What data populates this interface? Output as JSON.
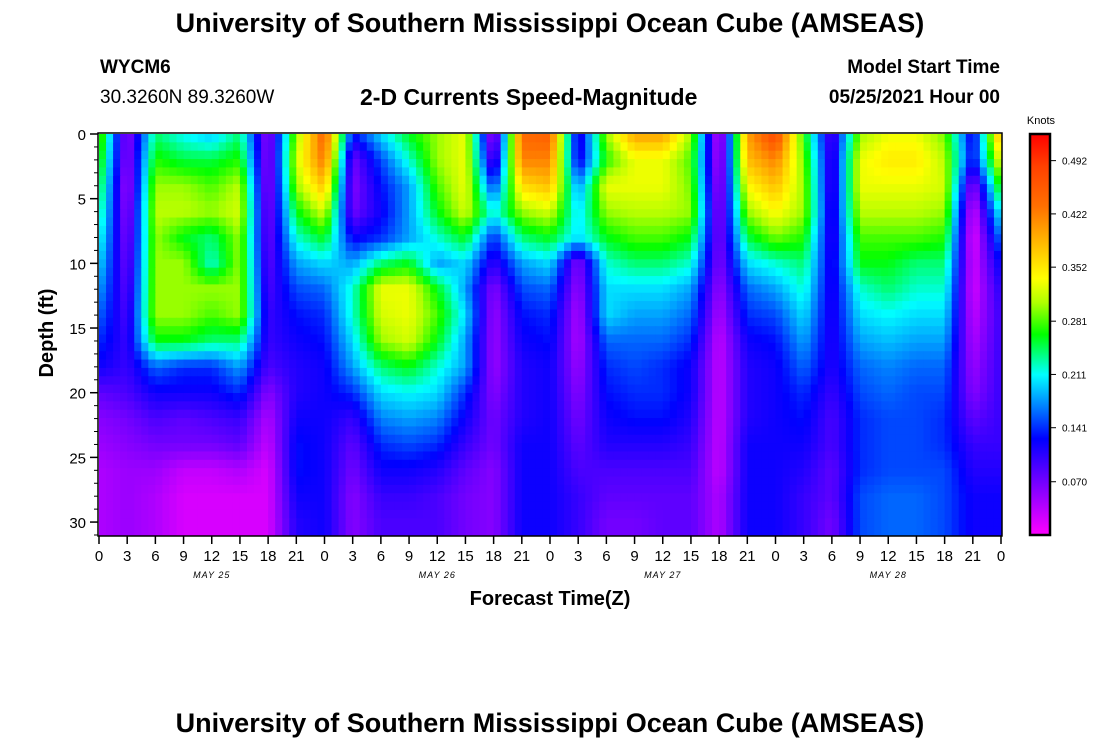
{
  "header": {
    "title": "University of Southern Mississippi Ocean Cube (AMSEAS)",
    "station": "WYCM6",
    "coords": "30.3260N  89.3260W",
    "subtitle": "2-D Currents Speed-Magnitude",
    "model_start_label": "Model Start Time",
    "model_start_value": "05/25/2021 Hour 00"
  },
  "footer": {
    "title": "University of Southern Mississippi Ocean Cube (AMSEAS)"
  },
  "chart_data": {
    "type": "heatmap",
    "title": "2-D Currents Speed-Magnitude",
    "xlabel": "Forecast Time(Z)",
    "ylabel": "Depth (ft)",
    "ylim": [
      0,
      31
    ],
    "y_ticks": [
      "0",
      "5",
      "10",
      "15",
      "20",
      "25",
      "30"
    ],
    "x_ticks": [
      "0",
      "3",
      "6",
      "9",
      "12",
      "15",
      "18",
      "21",
      "0",
      "3",
      "6",
      "9",
      "12",
      "15",
      "18",
      "21",
      "0",
      "3",
      "6",
      "9",
      "12",
      "15",
      "18",
      "21",
      "0",
      "3",
      "6",
      "9",
      "12",
      "15",
      "18",
      "21",
      "0"
    ],
    "day_labels": [
      "MAY 25",
      "MAY 26",
      "MAY 27",
      "MAY 28"
    ],
    "colorbar": {
      "unit": "Knots",
      "tick_labels": [
        "0.492",
        "0.422",
        "0.352",
        "0.281",
        "0.211",
        "0.141",
        "0.070"
      ],
      "range": [
        0,
        0.527
      ]
    },
    "depths_ft": [
      0,
      2,
      4,
      6,
      8,
      10,
      12,
      14,
      16,
      18,
      20,
      22,
      24,
      26,
      28,
      30
    ],
    "hours": [
      0,
      3,
      6,
      9,
      12,
      15,
      18,
      21,
      24,
      27,
      30,
      33,
      36,
      39,
      42,
      45,
      48,
      51,
      54,
      57,
      60,
      63,
      66,
      69,
      72,
      75,
      78,
      81,
      84,
      87,
      90,
      93,
      96
    ],
    "values": [
      [
        0.3,
        0.05,
        0.24,
        0.21,
        0.19,
        0.24,
        0.05,
        0.3,
        0.45,
        0.13,
        0.2,
        0.26,
        0.3,
        0.33,
        0.03,
        0.44,
        0.45,
        0.1,
        0.3,
        0.4,
        0.4,
        0.3,
        0.02,
        0.4,
        0.48,
        0.27,
        0.08,
        0.3,
        0.33,
        0.33,
        0.29,
        0.11,
        0.4
      ],
      [
        0.28,
        0.05,
        0.27,
        0.25,
        0.25,
        0.27,
        0.05,
        0.32,
        0.43,
        0.07,
        0.15,
        0.22,
        0.3,
        0.33,
        0.07,
        0.42,
        0.42,
        0.11,
        0.27,
        0.33,
        0.33,
        0.28,
        0.03,
        0.38,
        0.42,
        0.29,
        0.09,
        0.33,
        0.35,
        0.35,
        0.31,
        0.12,
        0.34
      ],
      [
        0.26,
        0.04,
        0.3,
        0.3,
        0.28,
        0.31,
        0.05,
        0.3,
        0.38,
        0.06,
        0.13,
        0.18,
        0.28,
        0.33,
        0.14,
        0.36,
        0.38,
        0.17,
        0.33,
        0.33,
        0.33,
        0.29,
        0.04,
        0.34,
        0.38,
        0.3,
        0.09,
        0.33,
        0.33,
        0.33,
        0.32,
        0.05,
        0.28
      ],
      [
        0.24,
        0.05,
        0.31,
        0.31,
        0.3,
        0.32,
        0.06,
        0.26,
        0.32,
        0.07,
        0.12,
        0.18,
        0.26,
        0.32,
        0.21,
        0.3,
        0.32,
        0.2,
        0.3,
        0.31,
        0.31,
        0.3,
        0.05,
        0.3,
        0.34,
        0.3,
        0.1,
        0.31,
        0.31,
        0.31,
        0.3,
        0.02,
        0.22
      ],
      [
        0.22,
        0.06,
        0.3,
        0.26,
        0.24,
        0.3,
        0.07,
        0.22,
        0.26,
        0.12,
        0.14,
        0.18,
        0.22,
        0.26,
        0.14,
        0.24,
        0.26,
        0.2,
        0.26,
        0.28,
        0.28,
        0.26,
        0.06,
        0.25,
        0.29,
        0.27,
        0.1,
        0.28,
        0.28,
        0.28,
        0.27,
        0.01,
        0.17
      ],
      [
        0.2,
        0.07,
        0.3,
        0.3,
        0.22,
        0.3,
        0.08,
        0.18,
        0.2,
        0.18,
        0.24,
        0.26,
        0.18,
        0.2,
        0.1,
        0.18,
        0.2,
        0.06,
        0.22,
        0.24,
        0.24,
        0.22,
        0.06,
        0.2,
        0.22,
        0.24,
        0.11,
        0.26,
        0.26,
        0.24,
        0.24,
        0.02,
        0.13
      ],
      [
        0.18,
        0.08,
        0.3,
        0.3,
        0.3,
        0.3,
        0.09,
        0.15,
        0.16,
        0.22,
        0.33,
        0.33,
        0.26,
        0.18,
        0.06,
        0.15,
        0.16,
        0.05,
        0.2,
        0.2,
        0.2,
        0.18,
        0.05,
        0.16,
        0.18,
        0.22,
        0.11,
        0.22,
        0.24,
        0.22,
        0.22,
        0.02,
        0.11
      ],
      [
        0.16,
        0.09,
        0.3,
        0.3,
        0.28,
        0.3,
        0.1,
        0.13,
        0.14,
        0.22,
        0.32,
        0.33,
        0.28,
        0.2,
        0.05,
        0.13,
        0.14,
        0.04,
        0.2,
        0.18,
        0.18,
        0.16,
        0.04,
        0.14,
        0.15,
        0.2,
        0.11,
        0.2,
        0.21,
        0.2,
        0.2,
        0.03,
        0.1
      ],
      [
        0.14,
        0.1,
        0.26,
        0.26,
        0.24,
        0.24,
        0.1,
        0.12,
        0.13,
        0.2,
        0.3,
        0.32,
        0.26,
        0.18,
        0.05,
        0.12,
        0.13,
        0.04,
        0.16,
        0.16,
        0.16,
        0.14,
        0.03,
        0.12,
        0.13,
        0.18,
        0.11,
        0.18,
        0.19,
        0.18,
        0.18,
        0.04,
        0.1
      ],
      [
        0.12,
        0.1,
        0.16,
        0.14,
        0.14,
        0.18,
        0.09,
        0.11,
        0.12,
        0.18,
        0.24,
        0.26,
        0.22,
        0.18,
        0.05,
        0.11,
        0.12,
        0.05,
        0.14,
        0.15,
        0.14,
        0.12,
        0.03,
        0.11,
        0.12,
        0.16,
        0.11,
        0.16,
        0.17,
        0.16,
        0.16,
        0.05,
        0.1
      ],
      [
        0.08,
        0.09,
        0.12,
        0.12,
        0.12,
        0.14,
        0.06,
        0.11,
        0.12,
        0.14,
        0.2,
        0.21,
        0.2,
        0.14,
        0.06,
        0.11,
        0.12,
        0.06,
        0.13,
        0.14,
        0.14,
        0.12,
        0.03,
        0.11,
        0.12,
        0.14,
        0.1,
        0.15,
        0.16,
        0.15,
        0.15,
        0.06,
        0.1
      ],
      [
        0.06,
        0.07,
        0.09,
        0.08,
        0.09,
        0.1,
        0.04,
        0.12,
        0.12,
        0.1,
        0.17,
        0.18,
        0.17,
        0.12,
        0.07,
        0.11,
        0.12,
        0.07,
        0.12,
        0.13,
        0.13,
        0.11,
        0.03,
        0.11,
        0.12,
        0.13,
        0.09,
        0.14,
        0.15,
        0.15,
        0.14,
        0.08,
        0.1
      ],
      [
        0.05,
        0.06,
        0.07,
        0.07,
        0.07,
        0.08,
        0.03,
        0.13,
        0.12,
        0.08,
        0.14,
        0.15,
        0.14,
        0.1,
        0.07,
        0.12,
        0.12,
        0.08,
        0.11,
        0.11,
        0.11,
        0.1,
        0.03,
        0.12,
        0.12,
        0.12,
        0.09,
        0.14,
        0.15,
        0.15,
        0.14,
        0.1,
        0.1
      ],
      [
        0.04,
        0.05,
        0.05,
        0.03,
        0.03,
        0.04,
        0.02,
        0.13,
        0.12,
        0.07,
        0.12,
        0.12,
        0.11,
        0.08,
        0.06,
        0.12,
        0.12,
        0.09,
        0.09,
        0.09,
        0.09,
        0.09,
        0.03,
        0.12,
        0.12,
        0.11,
        0.08,
        0.14,
        0.15,
        0.15,
        0.15,
        0.11,
        0.11
      ],
      [
        0.04,
        0.05,
        0.04,
        0.02,
        0.02,
        0.02,
        0.02,
        0.12,
        0.12,
        0.06,
        0.1,
        0.1,
        0.09,
        0.07,
        0.06,
        0.12,
        0.12,
        0.1,
        0.08,
        0.08,
        0.08,
        0.08,
        0.04,
        0.12,
        0.12,
        0.1,
        0.08,
        0.15,
        0.16,
        0.16,
        0.15,
        0.12,
        0.12
      ],
      [
        0.04,
        0.05,
        0.04,
        0.02,
        0.02,
        0.02,
        0.02,
        0.11,
        0.12,
        0.06,
        0.09,
        0.09,
        0.09,
        0.07,
        0.06,
        0.12,
        0.12,
        0.1,
        0.07,
        0.07,
        0.08,
        0.08,
        0.04,
        0.12,
        0.12,
        0.1,
        0.07,
        0.15,
        0.16,
        0.16,
        0.15,
        0.12,
        0.12
      ]
    ]
  }
}
